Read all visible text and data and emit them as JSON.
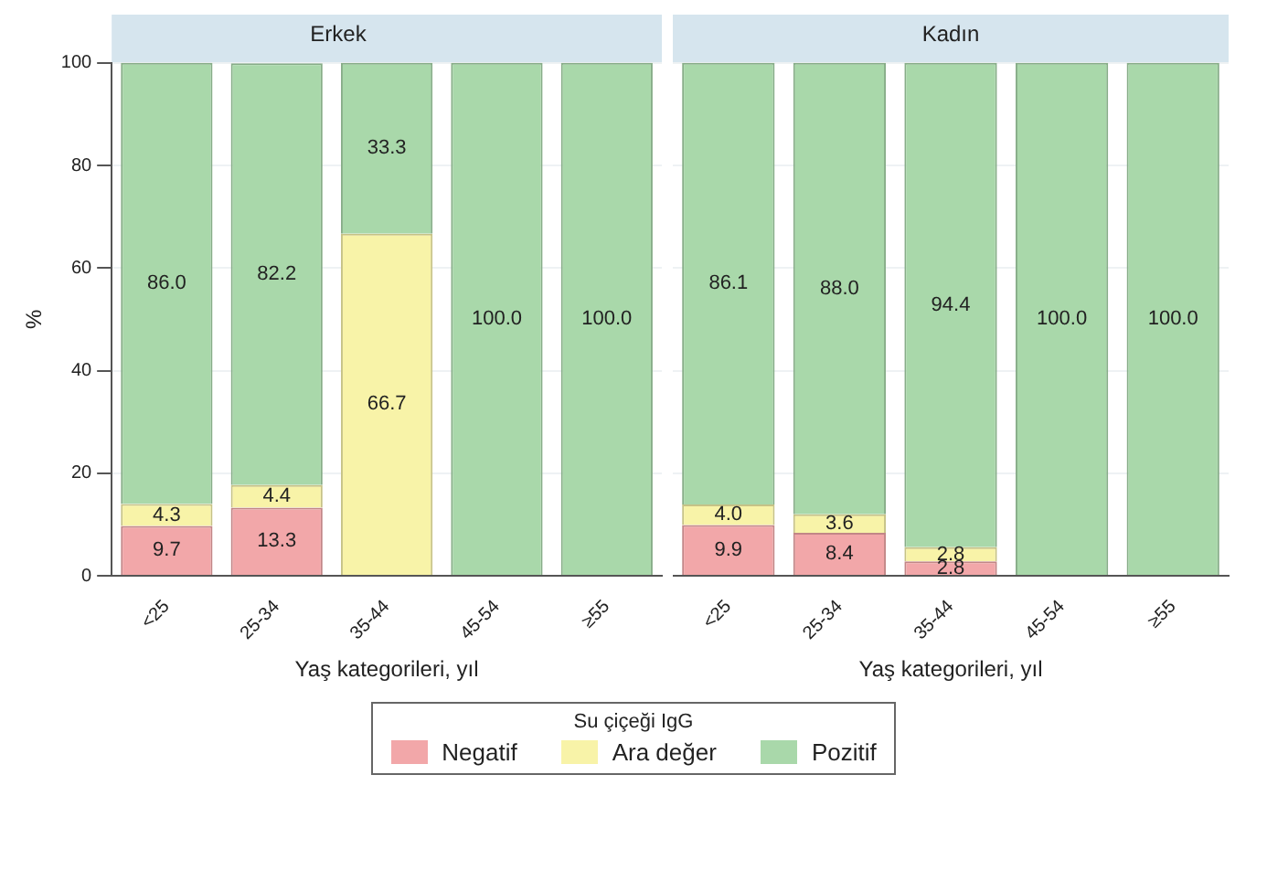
{
  "chart_data": [
    {
      "type": "bar",
      "title": "Erkek",
      "xlabel": "Yaş kategorileri, yıl",
      "ylabel": "%",
      "categories": [
        "<25",
        "25-34",
        "35-44",
        "45-54",
        "≥55"
      ],
      "stacked": true,
      "ylim": [
        0,
        100
      ],
      "yticks": [
        0,
        20,
        40,
        60,
        80,
        100
      ],
      "grid": "y",
      "legend": "bottom",
      "legend_title": "Su çiçeği IgG",
      "series": [
        {
          "name": "Negatif",
          "color": "#f2a7a9",
          "values": [
            9.7,
            13.3,
            0,
            0,
            0
          ],
          "value_labels": [
            "9.7",
            "13.3",
            null,
            null,
            null
          ]
        },
        {
          "name": "Ara değer",
          "color": "#f8f3a8",
          "values": [
            4.3,
            4.4,
            66.7,
            0,
            0
          ],
          "value_labels": [
            "4.3",
            "4.4",
            "66.7",
            null,
            null
          ]
        },
        {
          "name": "Pozitif",
          "color": "#a9d8aa",
          "values": [
            86.0,
            82.2,
            33.3,
            100,
            100
          ],
          "value_labels": [
            "86.0",
            "82.2",
            "33.3",
            "100.0",
            "100.0"
          ]
        }
      ]
    },
    {
      "type": "bar",
      "title": "Kadın",
      "xlabel": "Yaş kategorileri, yıl",
      "categories": [
        "<25",
        "25-34",
        "35-44",
        "45-54",
        "≥55"
      ],
      "stacked": true,
      "ylim": [
        0,
        100
      ],
      "yticks": [
        0,
        20,
        40,
        60,
        80,
        100
      ],
      "grid": "y",
      "tick_labels": "x",
      "series": [
        {
          "color": "#f2a7a9",
          "values": [
            9.9,
            8.4,
            2.8,
            0,
            0
          ],
          "value_labels": [
            "9.9",
            "8.4",
            "2.8",
            null,
            null
          ]
        },
        {
          "color": "#f8f3a8",
          "values": [
            4.0,
            3.6,
            2.8,
            0,
            0
          ],
          "value_labels": [
            "4.0",
            "3.6",
            "2.8",
            null,
            null
          ]
        },
        {
          "color": "#a9d8aa",
          "values": [
            86.1,
            88.0,
            94.4,
            100,
            100
          ],
          "value_labels": [
            "86.1",
            "88.0",
            "94.4",
            "100.0",
            "100.0"
          ]
        }
      ]
    }
  ]
}
